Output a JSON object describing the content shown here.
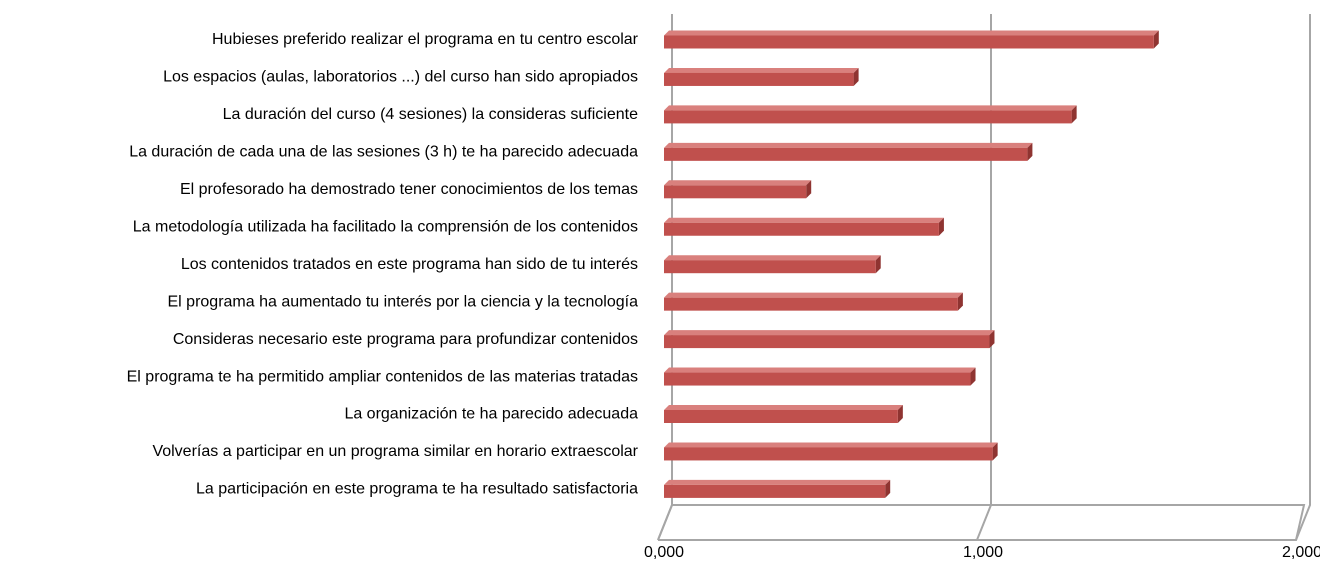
{
  "chart_data": {
    "type": "bar",
    "orientation": "horizontal",
    "categories": [
      "Hubieses preferido realizar el programa en tu centro escolar",
      "Los espacios  (aulas, laboratorios ...) del curso han sido apropiados",
      "La duración  del curso (4 sesiones) la consideras suficiente",
      "La duración de cada una de las sesiones (3 h) te ha parecido adecuada",
      "El profesorado ha demostrado tener conocimientos de los temas",
      "La metodología utilizada ha facilitado la comprensión de los contenidos",
      "Los contenidos tratados en este programa han sido de tu interés",
      "El programa ha aumentado tu interés por la ciencia y la tecnología",
      "Consideras necesario este programa para profundizar contenidos",
      "El programa te ha permitido ampliar contenidos de las materias tratadas",
      "La organización te ha parecido adecuada",
      "Volverías a participar en un programa similar en horario extraescolar",
      "La participación en este programa te ha resultado satisfactoria"
    ],
    "values": [
      1.55,
      0.6,
      1.29,
      1.15,
      0.45,
      0.87,
      0.67,
      0.93,
      1.03,
      0.97,
      0.74,
      1.04,
      0.7
    ],
    "color": "#c0504d",
    "xlim": [
      0,
      2
    ],
    "xticks": [
      {
        "value": 0,
        "label": "0,000"
      },
      {
        "value": 1,
        "label": "1,000"
      },
      {
        "value": 2,
        "label": "2,000"
      }
    ],
    "grid": true
  }
}
